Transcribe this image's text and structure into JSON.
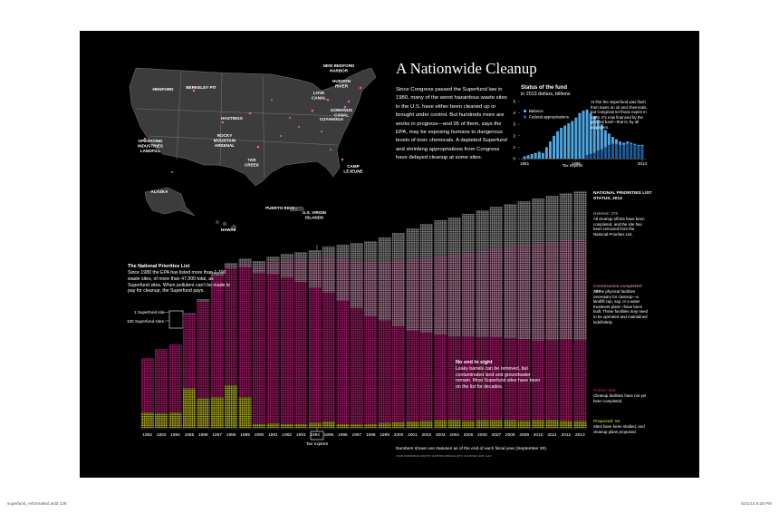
{
  "header": {
    "title": "A Nationwide Cleanup",
    "intro": "Since Congress passed the Superfund law in 1980, many of the worst hazardous waste sites in the U.S. have either been cleaned up or brought under control. But hundreds more are works in progress—and 95 of them, says the EPA, may be exposing humans to dangerous levels of toxic chemicals. A depleted Superfund and shrinking appropriations from Congress have delayed cleanup at some sites."
  },
  "map": {
    "labels": [
      {
        "lines": [
          "HANFORD"
        ]
      },
      {
        "lines": [
          "BERKELEY PIT"
        ]
      },
      {
        "lines": [
          "OPERATING",
          "INDUSTRIES",
          "LANDFILL"
        ]
      },
      {
        "lines": [
          "ROCKY",
          "MOUNTAIN",
          "ARSENAL"
        ]
      },
      {
        "lines": [
          "HASTINGS"
        ]
      },
      {
        "lines": [
          "TAR",
          "CREEK"
        ]
      },
      {
        "lines": [
          "CUYAHOGA"
        ]
      },
      {
        "lines": [
          "LOVE",
          "CANAL"
        ]
      },
      {
        "lines": [
          "NEW BEDFORD",
          "HARBOR"
        ]
      },
      {
        "lines": [
          "HUDSON",
          "RIVER"
        ]
      },
      {
        "lines": [
          "GOWANUS",
          "CANAL"
        ]
      },
      {
        "lines": [
          "CAMP",
          "LEJEUNE"
        ]
      },
      {
        "lines": [
          "ALASKA"
        ]
      },
      {
        "lines": [
          "HAWAII"
        ]
      },
      {
        "lines": [
          "PUERTO RICO"
        ]
      },
      {
        "lines": [
          "U.S. VIRGIN",
          "ISLANDS"
        ]
      }
    ]
  },
  "chart_data": [
    {
      "type": "bar",
      "stacked": true,
      "legend_title": "NATIONAL PRIORITIES LIST STATUS, 2013",
      "categories": [
        "1982",
        "1983",
        "1984",
        "1985",
        "1986",
        "1987",
        "1988",
        "1989",
        "1990",
        "1991",
        "1992",
        "1993",
        "1994",
        "1995",
        "1996",
        "1997",
        "1998",
        "1999",
        "2000",
        "2001",
        "2002",
        "2003",
        "2004",
        "2005",
        "2006",
        "2007",
        "2008",
        "2009",
        "2010",
        "2011",
        "2012",
        "2013"
      ],
      "ylim": [
        0,
        1900
      ],
      "series": [
        {
          "name": "Deleted: 375",
          "description": "All cleanup efforts have been completed, and the site has been removed from the National Priorities List.",
          "color": "#8c8c8c",
          "values": [
            0,
            0,
            0,
            5,
            10,
            15,
            25,
            30,
            35,
            40,
            45,
            55,
            65,
            80,
            110,
            130,
            160,
            180,
            210,
            240,
            260,
            275,
            290,
            300,
            310,
            320,
            330,
            340,
            350,
            360,
            365,
            375
          ]
        },
        {
          "name": "Construction completed: 790",
          "description": "All the physical facilities necessary for cleanup—a landfill cap, say, or a water treatment plant—have been built. These facilities may need to be operated and maintained indefinitely.",
          "color": "#b67c9c",
          "values": [
            0,
            0,
            0,
            5,
            10,
            15,
            20,
            40,
            60,
            100,
            140,
            180,
            230,
            280,
            330,
            380,
            430,
            470,
            520,
            560,
            590,
            620,
            640,
            660,
            680,
            700,
            720,
            740,
            760,
            770,
            780,
            790
          ]
        },
        {
          "name": "Active: 633",
          "description": "Cleanup facilities have not yet been completed.",
          "color": "#a8176a",
          "values": [
            426,
            507,
            532,
            580,
            757,
            950,
            916,
            1016,
            1180,
            1165,
            1147,
            1111,
            1055,
            1008,
            963,
            912,
            841,
            799,
            750,
            710,
            691,
            669,
            655,
            659,
            652,
            650,
            642,
            638,
            624,
            626,
            637,
            633
          ]
        },
        {
          "name": "Proposed: 54",
          "description": "Sites have been studied, and cleanup plans proposed.",
          "color": "#b8b51c",
          "values": [
            120,
            110,
            120,
            310,
            230,
            240,
            330,
            240,
            30,
            35,
            30,
            30,
            40,
            50,
            30,
            25,
            30,
            40,
            45,
            50,
            55,
            60,
            60,
            55,
            60,
            60,
            60,
            55,
            60,
            60,
            55,
            54
          ]
        }
      ],
      "annotations": {
        "npl_title": "The National Priorities List",
        "npl_text": "Since 1980 the EPA has listed more than 1,700 waste sites, of more than 47,000 total, as Superfund sites. When polluters can't be made to pay for cleanup, the Superfund pays.",
        "one_site": "1 Superfund site",
        "hundred_sites": "100 Superfund sites",
        "no_end_title": "No end in sight",
        "no_end_text": "Leaky barrels can be removed, but contaminated land and groundwater remain. Most Superfund sites have been on the list for decades.",
        "tax_expires": "Tax expires"
      }
    },
    {
      "type": "bar",
      "stacked": true,
      "title": "Status of the fund",
      "subtitle": "in 2013 dollars, billions",
      "x": [
        1981,
        1982,
        1983,
        1984,
        1985,
        1986,
        1987,
        1988,
        1989,
        1990,
        1991,
        1992,
        1993,
        1994,
        1995,
        1996,
        1997,
        1998,
        1999,
        2000,
        2001,
        2002,
        2003,
        2004,
        2005,
        2006,
        2007,
        2008,
        2009,
        2010,
        2011,
        2012,
        2013
      ],
      "xlim": [
        1980,
        2014
      ],
      "xticks": [
        1981,
        1995,
        2013
      ],
      "ylim": [
        0,
        5
      ],
      "yticks": [
        0,
        1,
        2,
        3,
        4,
        5
      ],
      "series": [
        {
          "name": "Balance",
          "color": "#4da6e0",
          "values": [
            0.2,
            0.3,
            0.4,
            0.5,
            0.6,
            0.5,
            1.0,
            1.5,
            2.0,
            2.4,
            2.7,
            2.9,
            3.1,
            3.3,
            3.6,
            4.0,
            4.2,
            4.0,
            3.6,
            3.2,
            2.7,
            2.2,
            1.5,
            1.0,
            0.6,
            0.4,
            0.3,
            0.2,
            0.2,
            0.1,
            0.1,
            0.1,
            0.1
          ]
        },
        {
          "name": "Federal appropriations",
          "color": "#1d5c96",
          "values": [
            0,
            0,
            0,
            0,
            0,
            0,
            0,
            0,
            0,
            0,
            0,
            0,
            0,
            0,
            0,
            0,
            0,
            0.3,
            0.4,
            0.5,
            0.7,
            0.8,
            1.0,
            1.2,
            1.3,
            1.3,
            1.2,
            1.2,
            1.3,
            1.3,
            1.2,
            1.1,
            1.1
          ]
        }
      ],
      "annotation": "At first the Superfund was flush from taxes on oil and chemicals, but Congress let those expire in 1995. It's now financed by the general fund—that is, by all taxpayers.",
      "xlabel": "Tax expires"
    }
  ],
  "notes": {
    "note": "Numbers shown are statuses as of the end of each fiscal year (September 30).",
    "credit": "JOHN GRIMWADE; MAP BY MAPPING SPECIALISTS; SOURCES: EPA; GAO"
  },
  "footer": {
    "file": "superfund_reformatted.indd 128",
    "date": "5/21/14 6:28 PM"
  }
}
